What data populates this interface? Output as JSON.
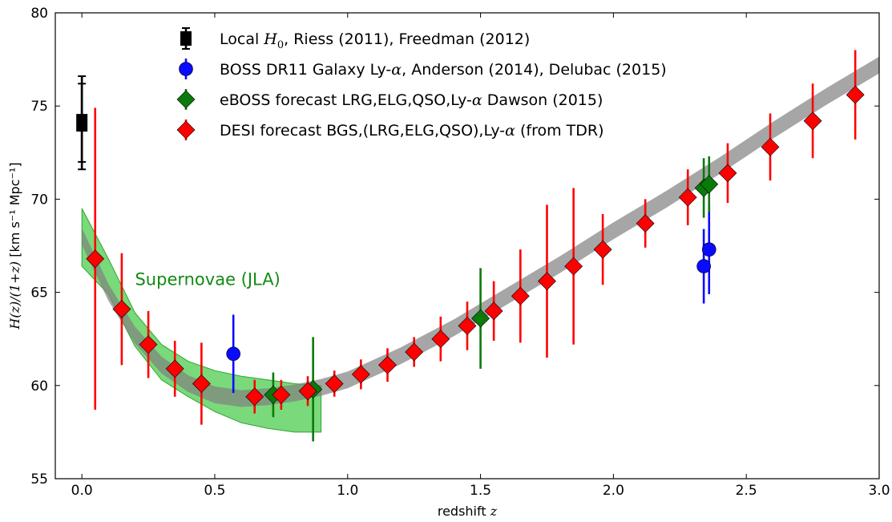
{
  "chart_data": {
    "type": "scatter",
    "xlabel": "redshift z",
    "ylabel": "H(z)/(1+z) [km s⁻¹ Mpc⁻¹]",
    "xlim": [
      -0.1,
      3.0
    ],
    "ylim": [
      55,
      80
    ],
    "x_ticks": [
      0.0,
      0.5,
      1.0,
      1.5,
      2.0,
      2.5,
      3.0
    ],
    "x_tick_labels": [
      "0.0",
      "0.5",
      "1.0",
      "1.5",
      "2.0",
      "2.5",
      "3.0"
    ],
    "y_ticks": [
      55,
      60,
      65,
      70,
      75,
      80
    ],
    "y_tick_labels": [
      "55",
      "60",
      "65",
      "70",
      "75",
      "80"
    ],
    "grid": false,
    "legend_position": "top-center",
    "annotation": {
      "text": "Supernovae (JLA)",
      "x": 0.2,
      "y": 65.4,
      "color": "#138a13"
    },
    "bands": [
      {
        "name": "LCDM model band",
        "color": "#808080",
        "x": [
          0.0,
          0.1,
          0.2,
          0.3,
          0.4,
          0.5,
          0.6,
          0.7,
          0.8,
          0.9,
          1.0,
          1.2,
          1.4,
          1.6,
          1.8,
          2.0,
          2.2,
          2.4,
          2.6,
          2.8,
          3.0
        ],
        "y": [
          68.0,
          65.0,
          62.7,
          61.1,
          60.1,
          59.5,
          59.3,
          59.4,
          59.6,
          59.9,
          60.3,
          61.6,
          63.1,
          64.8,
          66.5,
          68.3,
          70.0,
          71.8,
          73.7,
          75.5,
          77.2
        ],
        "half_width": 0.45
      },
      {
        "name": "Supernovae (JLA)",
        "color": "#33c433",
        "x": [
          0.0,
          0.1,
          0.2,
          0.3,
          0.4,
          0.5,
          0.6,
          0.7,
          0.8,
          0.9
        ],
        "upper": [
          69.5,
          66.8,
          63.9,
          62.2,
          61.3,
          60.8,
          60.5,
          60.3,
          60.1,
          60.0
        ],
        "lower": [
          66.4,
          64.9,
          62.1,
          60.3,
          59.4,
          58.6,
          58.0,
          57.7,
          57.5,
          57.5
        ]
      }
    ],
    "series": [
      {
        "name": "Local H₀, Riess (2011), Freedman (2012)",
        "legend_parts": [
          "Local ",
          "H",
          "0",
          ", Riess (2011), Freedman (2012)"
        ],
        "marker": "square",
        "color": "#000000",
        "points": [
          {
            "x": 0.0,
            "y": 74.1,
            "err": 2.5
          },
          {
            "x": 0.0,
            "y": 74.1,
            "err": 2.1
          }
        ]
      },
      {
        "name": "BOSS DR11 Galaxy Ly-α, Anderson (2014), Delubac (2015)",
        "legend_parts": [
          "BOSS DR11 Galaxy Ly-",
          "α",
          ", Anderson (2014), Delubac (2015)"
        ],
        "marker": "circle",
        "color": "#0a0aff",
        "points": [
          {
            "x": 0.57,
            "y": 61.7,
            "err": 2.1
          },
          {
            "x": 2.34,
            "y": 66.4,
            "err": 2.0
          },
          {
            "x": 2.36,
            "y": 67.3,
            "err": 2.4
          }
        ]
      },
      {
        "name": "eBOSS forecast LRG,ELG,QSO,Ly-α Dawson (2015)",
        "legend_parts": [
          "eBOSS forecast LRG,ELG,QSO,Ly-",
          "α",
          " Dawson (2015)"
        ],
        "marker": "diamond",
        "color": "#0a7a0a",
        "points": [
          {
            "x": 0.72,
            "y": 59.5,
            "err": 1.2
          },
          {
            "x": 0.87,
            "y": 59.8,
            "err": 2.8
          },
          {
            "x": 1.5,
            "y": 63.6,
            "err": 2.7
          },
          {
            "x": 2.34,
            "y": 70.6,
            "err": 1.6
          },
          {
            "x": 2.36,
            "y": 70.8,
            "err": 1.5
          }
        ]
      },
      {
        "name": "DESI forecast BGS,(LRG,ELG,QSO),Ly-α (from TDR)",
        "legend_parts": [
          "DESI forecast BGS,(LRG,ELG,QSO),Ly-",
          "α",
          " (from TDR)"
        ],
        "marker": "diamond",
        "color": "#ff0000",
        "points": [
          {
            "x": 0.05,
            "y": 66.8,
            "err": 8.1
          },
          {
            "x": 0.15,
            "y": 64.1,
            "err": 3.0
          },
          {
            "x": 0.25,
            "y": 62.2,
            "err": 1.8
          },
          {
            "x": 0.35,
            "y": 60.9,
            "err": 1.5
          },
          {
            "x": 0.45,
            "y": 60.1,
            "err": 2.2
          },
          {
            "x": 0.65,
            "y": 59.4,
            "err": 0.9
          },
          {
            "x": 0.75,
            "y": 59.5,
            "err": 0.8
          },
          {
            "x": 0.85,
            "y": 59.7,
            "err": 0.8
          },
          {
            "x": 0.95,
            "y": 60.1,
            "err": 0.7
          },
          {
            "x": 1.05,
            "y": 60.6,
            "err": 0.8
          },
          {
            "x": 1.15,
            "y": 61.1,
            "err": 0.9
          },
          {
            "x": 1.25,
            "y": 61.8,
            "err": 0.8
          },
          {
            "x": 1.35,
            "y": 62.5,
            "err": 1.2
          },
          {
            "x": 1.45,
            "y": 63.2,
            "err": 1.3
          },
          {
            "x": 1.55,
            "y": 64.0,
            "err": 1.6
          },
          {
            "x": 1.65,
            "y": 64.8,
            "err": 2.5
          },
          {
            "x": 1.75,
            "y": 65.6,
            "err": 4.1
          },
          {
            "x": 1.85,
            "y": 66.4,
            "err": 4.2
          },
          {
            "x": 1.96,
            "y": 67.3,
            "err": 1.9
          },
          {
            "x": 2.12,
            "y": 68.7,
            "err": 1.3
          },
          {
            "x": 2.28,
            "y": 70.1,
            "err": 1.5
          },
          {
            "x": 2.43,
            "y": 71.4,
            "err": 1.6
          },
          {
            "x": 2.59,
            "y": 72.8,
            "err": 1.8
          },
          {
            "x": 2.75,
            "y": 74.2,
            "err": 2.0
          },
          {
            "x": 2.91,
            "y": 75.6,
            "err": 2.4
          }
        ]
      }
    ]
  }
}
